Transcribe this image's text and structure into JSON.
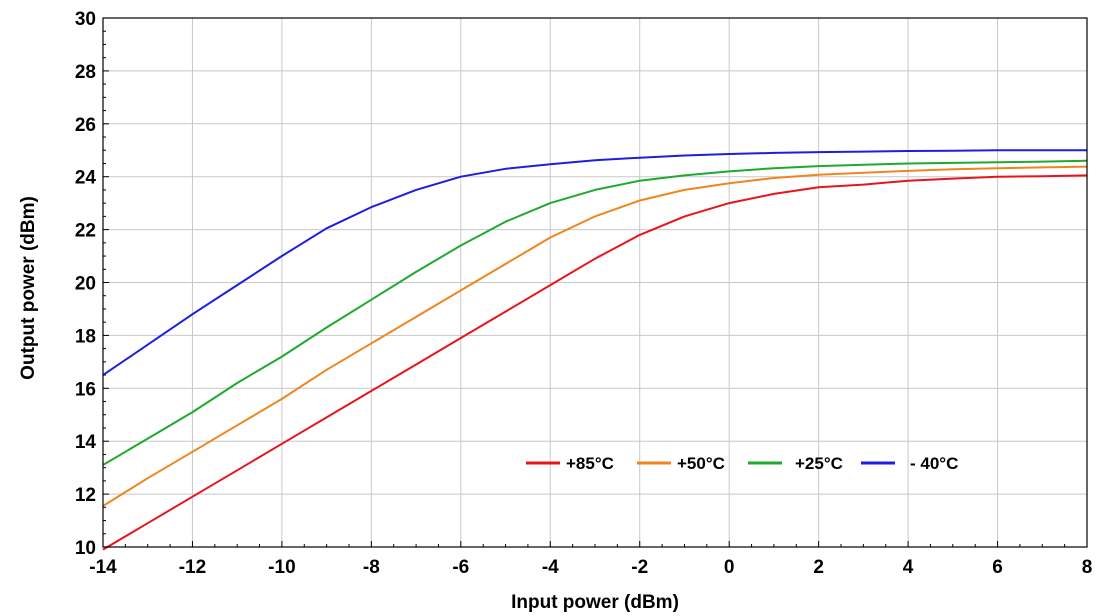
{
  "chart_data": {
    "type": "line",
    "title": "",
    "xlabel": "Input power (dBm)",
    "ylabel": "Output power (dBm)",
    "xlim": [
      -14,
      8
    ],
    "ylim": [
      10,
      30
    ],
    "xticks": [
      -14,
      -12,
      -10,
      -8,
      -6,
      -4,
      -2,
      0,
      2,
      4,
      6,
      8
    ],
    "yticks": [
      10,
      12,
      14,
      16,
      18,
      20,
      22,
      24,
      26,
      28,
      30
    ],
    "grid": true,
    "legend_position": "lower-right",
    "x": [
      -14,
      -13,
      -12,
      -11,
      -10,
      -9,
      -8,
      -7,
      -6,
      -5,
      -4,
      -3,
      -2,
      -1,
      0,
      1,
      2,
      3,
      4,
      5,
      6,
      7,
      8
    ],
    "series": [
      {
        "name": "+85°C",
        "color": "#e8141b",
        "values": [
          9.9,
          10.9,
          11.9,
          12.9,
          13.9,
          14.9,
          15.9,
          16.9,
          17.9,
          18.9,
          19.9,
          20.9,
          21.8,
          22.5,
          23.0,
          23.35,
          23.6,
          23.7,
          23.85,
          23.93,
          24.0,
          24.02,
          24.05
        ]
      },
      {
        "name": "+50°C",
        "color": "#f0851e",
        "values": [
          11.55,
          12.6,
          13.6,
          14.6,
          15.6,
          16.7,
          17.7,
          18.7,
          19.7,
          20.7,
          21.7,
          22.5,
          23.1,
          23.5,
          23.75,
          23.95,
          24.07,
          24.15,
          24.22,
          24.28,
          24.32,
          24.35,
          24.38
        ]
      },
      {
        "name": "+25°C",
        "color": "#1faa2e",
        "values": [
          13.1,
          14.1,
          15.1,
          16.2,
          17.2,
          18.3,
          19.35,
          20.4,
          21.4,
          22.3,
          23.0,
          23.5,
          23.85,
          24.05,
          24.2,
          24.32,
          24.4,
          24.45,
          24.5,
          24.52,
          24.55,
          24.57,
          24.6
        ]
      },
      {
        "name": "- 40°C",
        "color": "#1e1ee0",
        "values": [
          16.5,
          17.65,
          18.8,
          19.9,
          21.0,
          22.05,
          22.85,
          23.5,
          24.0,
          24.3,
          24.47,
          24.62,
          24.72,
          24.8,
          24.86,
          24.9,
          24.93,
          24.95,
          24.97,
          24.98,
          25.0,
          25.0,
          25.0
        ]
      }
    ]
  }
}
